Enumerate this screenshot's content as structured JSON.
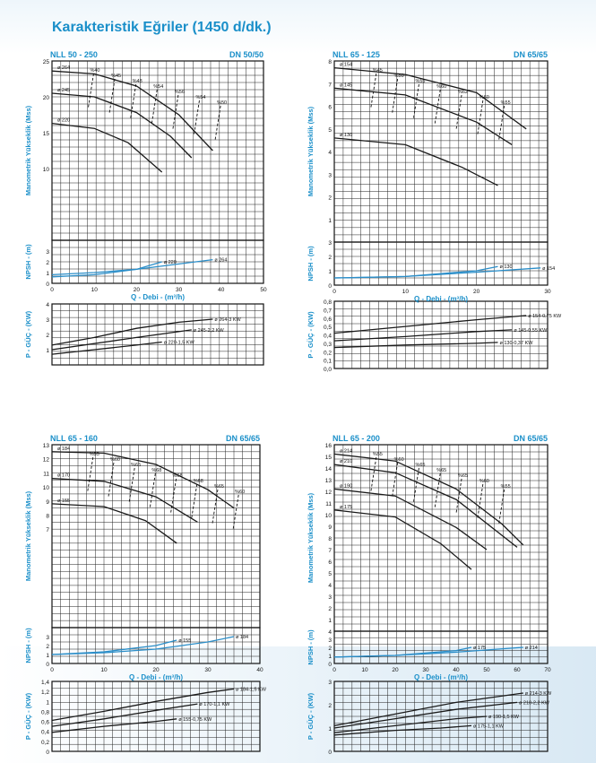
{
  "page": {
    "title": "Karakteristik Eğriler (1450 d/dk.)"
  },
  "colors": {
    "title": "#1a8fc9",
    "axis_label": "#1a8fc9",
    "curves": "#1a1a1a",
    "npsh": "#2a8ec9",
    "grid": "#222222"
  },
  "chart_data": [
    {
      "type": "line",
      "title": "NLL 50 - 250",
      "dn": "DN 50/50",
      "head": {
        "ylabel": "Manometrik Yükseklik (Mss)",
        "ylim": [
          0,
          25
        ],
        "yticks": [
          10,
          15,
          20,
          25
        ],
        "series": [
          {
            "name": "ø 264",
            "x": [
              0,
              10,
              20,
              30,
              38
            ],
            "y": [
              23.6,
              23.2,
              21.5,
              17.5,
              12.5
            ]
          },
          {
            "name": "ø 245",
            "x": [
              0,
              10,
              20,
              28,
              33
            ],
            "y": [
              20.5,
              20,
              17.8,
              14.5,
              11.5
            ]
          },
          {
            "name": "ø 220",
            "x": [
              0,
              10,
              18,
              26
            ],
            "y": [
              16.3,
              15.6,
              13.6,
              9.5
            ]
          }
        ],
        "efficiency_labels": [
          "%40",
          "%45",
          "%48",
          "%54",
          "%56",
          "%54",
          "%50"
        ]
      },
      "npsh": {
        "ylabel": "NPSH - (m)",
        "ylim": [
          0,
          4
        ],
        "yticks": [
          0,
          1,
          2,
          3
        ],
        "series": [
          {
            "name": "ø 220",
            "x": [
              0,
              10,
              20,
              26
            ],
            "y": [
              0.6,
              0.8,
              1.3,
              2
            ]
          },
          {
            "name": "ø 264",
            "x": [
              0,
              10,
              20,
              30,
              38
            ],
            "y": [
              0.8,
              1,
              1.3,
              1.8,
              2.2
            ]
          }
        ]
      },
      "xlabel": "Q - Debi - (m³/h)",
      "xlim": [
        0,
        50
      ],
      "xticks": [
        0,
        10,
        20,
        30,
        40,
        50
      ],
      "power": {
        "ylabel": "P - GÜÇ - (KW)",
        "ylim": [
          0,
          4
        ],
        "yticks": [
          1,
          2,
          3,
          4
        ],
        "series": [
          {
            "name": "ø 264-3 KW",
            "x": [
              0,
              10,
              20,
              30,
              38
            ],
            "y": [
              1.3,
              1.8,
              2.4,
              2.8,
              3
            ]
          },
          {
            "name": "ø 245-2,2 KW",
            "x": [
              0,
              10,
              20,
              33
            ],
            "y": [
              1,
              1.4,
              1.8,
              2.3
            ]
          },
          {
            "name": "ø 220-1,5 KW",
            "x": [
              0,
              10,
              20,
              26
            ],
            "y": [
              0.7,
              1,
              1.3,
              1.5
            ]
          }
        ]
      }
    },
    {
      "type": "line",
      "title": "NLL 65 - 125",
      "dn": "DN 65/65",
      "head": {
        "ylabel": "Manometrik Yükseklik (Mss)",
        "ylim": [
          0,
          8
        ],
        "yticks": [
          1,
          2,
          3,
          4,
          5,
          6,
          7,
          8
        ],
        "series": [
          {
            "name": "ø 154",
            "x": [
              0,
              10,
              20,
              27
            ],
            "y": [
              7.7,
              7.4,
              6.6,
              5
            ]
          },
          {
            "name": "ø 145",
            "x": [
              0,
              10,
              20,
              25
            ],
            "y": [
              6.8,
              6.5,
              5.3,
              4.3
            ]
          },
          {
            "name": "ø 130",
            "x": [
              0,
              10,
              18,
              23
            ],
            "y": [
              4.6,
              4.3,
              3.3,
              2.5
            ]
          }
        ],
        "efficiency_labels": [
          "%45",
          "%50",
          "%55",
          "%60",
          "%62",
          "%60",
          "%55"
        ]
      },
      "npsh": {
        "ylabel": "NPSH - (m)",
        "ylim": [
          0,
          3
        ],
        "yticks": [
          0,
          1,
          2,
          3
        ],
        "series": [
          {
            "name": "ø 130",
            "x": [
              0,
              10,
              20,
              23
            ],
            "y": [
              0.5,
              0.6,
              1,
              1.3
            ]
          },
          {
            "name": "ø 154",
            "x": [
              0,
              10,
              20,
              29
            ],
            "y": [
              0.5,
              0.6,
              0.9,
              1.2
            ]
          }
        ]
      },
      "xlabel": "Q - Debi - (m³/h)",
      "xlim": [
        0,
        30
      ],
      "xticks": [
        0,
        10,
        20,
        30
      ],
      "power": {
        "ylabel": "P - GÜÇ - (KW)",
        "ylim": [
          0,
          0.8
        ],
        "yticks": [
          0,
          0.1,
          0.2,
          0.3,
          0.4,
          0.5,
          0.6,
          0.7,
          0.8
        ],
        "ytick_labels": [
          "0,0",
          "0,1",
          "0,2",
          "0,3",
          "0,4",
          "0,5",
          "0,6",
          "0,7",
          "0,8"
        ],
        "series": [
          {
            "name": "ø 154-0,75 KW",
            "x": [
              0,
              10,
              20,
              27
            ],
            "y": [
              0.42,
              0.5,
              0.58,
              0.63
            ]
          },
          {
            "name": "ø 145-0,55 KW",
            "x": [
              0,
              10,
              20,
              25
            ],
            "y": [
              0.33,
              0.38,
              0.44,
              0.46
            ]
          },
          {
            "name": "ø 130-0,37 KW",
            "x": [
              0,
              10,
              20,
              23
            ],
            "y": [
              0.25,
              0.28,
              0.3,
              0.31
            ]
          }
        ]
      }
    },
    {
      "type": "line",
      "title": "NLL 65 - 160",
      "dn": "DN 65/65",
      "head": {
        "ylabel": "Manometrik Yükseklik (Mss)",
        "ylim": [
          0,
          13
        ],
        "yticks": [
          7,
          8,
          9,
          10,
          11,
          12,
          13
        ],
        "series": [
          {
            "name": "ø 184",
            "x": [
              0,
              10,
              20,
              30,
              35
            ],
            "y": [
              12.5,
              12.4,
              11.6,
              9.8,
              8.5
            ]
          },
          {
            "name": "ø 170",
            "x": [
              0,
              10,
              20,
              28
            ],
            "y": [
              10.6,
              10.4,
              9.3,
              7.5
            ]
          },
          {
            "name": "ø 155",
            "x": [
              0,
              10,
              18,
              24
            ],
            "y": [
              8.8,
              8.6,
              7.6,
              6
            ]
          }
        ],
        "efficiency_labels": [
          "%55",
          "%60",
          "%65",
          "%68",
          "%68",
          "%68",
          "%65",
          "%60"
        ]
      },
      "npsh": {
        "ylabel": "NPSH - (m)",
        "ylim": [
          0,
          4
        ],
        "yticks": [
          0,
          1,
          2,
          3
        ],
        "series": [
          {
            "name": "ø 155",
            "x": [
              0,
              10,
              20,
              24
            ],
            "y": [
              1,
              1.3,
              2,
              2.6
            ]
          },
          {
            "name": "ø 184",
            "x": [
              0,
              10,
              20,
              30,
              35
            ],
            "y": [
              1,
              1.2,
              1.6,
              2.4,
              3
            ]
          }
        ]
      },
      "xlabel": "Q - Debi - (m³/h)",
      "xlim": [
        0,
        40
      ],
      "xticks": [
        0,
        10,
        20,
        30,
        40
      ],
      "power": {
        "ylabel": "P - GÜÇ - (KW)",
        "ylim": [
          0,
          1.4
        ],
        "yticks": [
          0,
          0.2,
          0.4,
          0.6,
          0.8,
          1,
          1.2,
          1.4
        ],
        "ytick_labels": [
          "0",
          "0,2",
          "0,4",
          "0,6",
          "0,8",
          "1",
          "1,2",
          "1,4"
        ],
        "series": [
          {
            "name": "ø 184-1,5 KW",
            "x": [
              0,
              10,
              20,
              30,
              35
            ],
            "y": [
              0.62,
              0.8,
              1,
              1.18,
              1.25
            ]
          },
          {
            "name": "ø 170-1,1 KW",
            "x": [
              0,
              10,
              20,
              28
            ],
            "y": [
              0.5,
              0.65,
              0.82,
              0.95
            ]
          },
          {
            "name": "ø 155-0,75 KW",
            "x": [
              0,
              10,
              20,
              24
            ],
            "y": [
              0.38,
              0.5,
              0.6,
              0.65
            ]
          }
        ]
      }
    },
    {
      "type": "line",
      "title": "NLL 65 - 200",
      "dn": "DN 65/65",
      "head": {
        "ylabel": "Manometrik Yükseklik (Mss)",
        "ylim": [
          0,
          16
        ],
        "yticks": [
          1,
          2,
          3,
          4,
          5,
          6,
          7,
          8,
          9,
          10,
          11,
          12,
          13,
          14,
          15,
          16
        ],
        "series": [
          {
            "name": "ø 214",
            "x": [
              0,
              20,
              40,
              55,
              62
            ],
            "y": [
              15.2,
              14.6,
              12.2,
              9.2,
              7.4
            ]
          },
          {
            "name": "ø 210",
            "x": [
              0,
              20,
              40,
              60
            ],
            "y": [
              14.3,
              13.6,
              11.3,
              7.2
            ]
          },
          {
            "name": "ø 190",
            "x": [
              0,
              20,
              40,
              50
            ],
            "y": [
              12.2,
              11.6,
              8.9,
              7
            ]
          },
          {
            "name": "ø 175",
            "x": [
              0,
              20,
              35,
              45
            ],
            "y": [
              10.4,
              9.8,
              7.5,
              5.3
            ]
          }
        ],
        "efficiency_labels": [
          "%55",
          "%60",
          "%65",
          "%65",
          "%65",
          "%60",
          "%55"
        ]
      },
      "npsh": {
        "ylabel": "NPSH - (m)",
        "ylim": [
          0,
          4
        ],
        "yticks": [
          0,
          1,
          2,
          3,
          4
        ],
        "series": [
          {
            "name": "ø 175",
            "x": [
              0,
              20,
              40,
              45
            ],
            "y": [
              0.8,
              1,
              1.6,
              2
            ]
          },
          {
            "name": "ø 214",
            "x": [
              0,
              20,
              40,
              62
            ],
            "y": [
              0.8,
              1,
              1.4,
              2
            ]
          }
        ]
      },
      "xlabel": "Q - Debi - (m³/h)",
      "xlim": [
        0,
        70
      ],
      "xticks": [
        0,
        10,
        20,
        30,
        40,
        50,
        60,
        70
      ],
      "power": {
        "ylabel": "P - GÜÇ - (KW)",
        "ylim": [
          0,
          3
        ],
        "yticks": [
          0,
          1,
          2,
          3
        ],
        "series": [
          {
            "name": "ø 214-3 KW",
            "x": [
              0,
              20,
              40,
              62
            ],
            "y": [
              1.1,
              1.6,
              2.1,
              2.5
            ]
          },
          {
            "name": "ø 210-2,2 KW",
            "x": [
              0,
              20,
              40,
              60
            ],
            "y": [
              1,
              1.4,
              1.8,
              2.1
            ]
          },
          {
            "name": "ø 190-1,5 KW",
            "x": [
              0,
              20,
              40,
              50
            ],
            "y": [
              0.8,
              1.1,
              1.4,
              1.5
            ]
          },
          {
            "name": "ø 175-1,1 KW",
            "x": [
              0,
              20,
              35,
              45
            ],
            "y": [
              0.7,
              0.9,
              1,
              1.1
            ]
          }
        ]
      }
    }
  ]
}
